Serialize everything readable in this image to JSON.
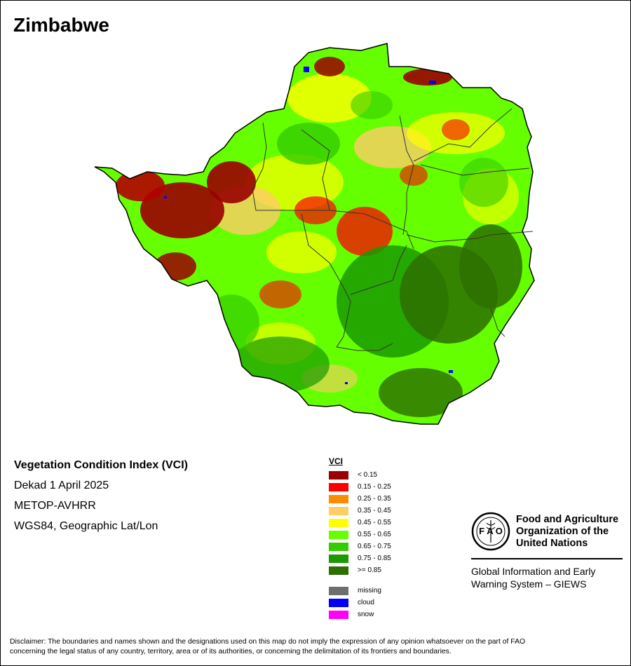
{
  "title": "Zimbabwe",
  "info": {
    "heading": "Vegetation Condition Index (VCI)",
    "date": "Dekad 1 April 2025",
    "sensor": "METOP-AVHRR",
    "projection": "WGS84, Geographic Lat/Lon"
  },
  "legend": {
    "title": "VCI",
    "classes": [
      {
        "label": "< 0.15",
        "color": "#990000"
      },
      {
        "label": "0.15 - 0.25",
        "color": "#ff0000"
      },
      {
        "label": "0.25 - 0.35",
        "color": "#ff8c00"
      },
      {
        "label": "0.35 - 0.45",
        "color": "#ffcc66"
      },
      {
        "label": "0.45 - 0.55",
        "color": "#ffff00"
      },
      {
        "label": "0.55 - 0.65",
        "color": "#66ff00"
      },
      {
        "label": "0.65 - 0.75",
        "color": "#33cc00"
      },
      {
        "label": "0.75 - 0.85",
        "color": "#1a9900"
      },
      {
        "label": ">= 0.85",
        "color": "#2d6e00"
      }
    ],
    "special": [
      {
        "label": "missing",
        "color": "#6e6e6e"
      },
      {
        "label": "cloud",
        "color": "#0000ff"
      },
      {
        "label": "snow",
        "color": "#ff00ff"
      }
    ]
  },
  "logo": {
    "emblem_text": "FIAT PANIS",
    "org_line1": "Food and Agriculture",
    "org_line2": "Organization of the",
    "org_line3": "United Nations",
    "giews_line1": "Global Information and Early",
    "giews_line2": "Warning System – GIEWS"
  },
  "disclaimer_line1": "Disclaimer: The boundaries and names shown and the designations used on this map do not imply the expression of any opinion whatsoever on the part of FAO",
  "disclaimer_line2": "concerning the legal status of any country, territory, area or of its authorities, or concerning the delimitation of its frontiers and boundaries."
}
